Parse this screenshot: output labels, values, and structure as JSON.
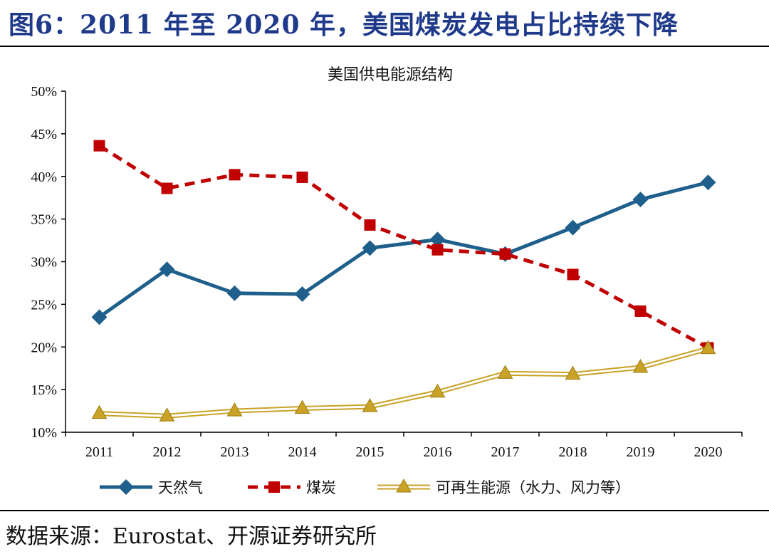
{
  "figure_title": "图6：2011 年至 2020 年，美国煤炭发电占比持续下降",
  "source": "数据来源：Eurostat、开源证券研究所",
  "colors": {
    "gas": "#1f5f8b",
    "coal": "#c00000",
    "renewables": "#c9a227",
    "title": "#1f3a8a"
  },
  "chart_data": {
    "type": "line",
    "title": "美国供电能源结构",
    "xlabel": "",
    "ylabel": "",
    "x": [
      "2011",
      "2012",
      "2013",
      "2014",
      "2015",
      "2016",
      "2017",
      "2018",
      "2019",
      "2020"
    ],
    "ylim": [
      10,
      50
    ],
    "yticks": [
      "10%",
      "15%",
      "20%",
      "25%",
      "30%",
      "35%",
      "40%",
      "45%",
      "50%"
    ],
    "grid": false,
    "legend_position": "bottom",
    "series": [
      {
        "name": "天然气",
        "marker": "diamond",
        "style": "solid",
        "color": "#1f5f8b",
        "values": [
          23.5,
          29.1,
          26.3,
          26.2,
          31.6,
          32.6,
          30.9,
          34.0,
          37.3,
          39.3
        ]
      },
      {
        "name": "煤炭",
        "marker": "square",
        "style": "dashed",
        "color": "#c00000",
        "values": [
          43.6,
          38.6,
          40.2,
          39.9,
          34.3,
          31.4,
          30.9,
          28.5,
          24.2,
          19.9
        ]
      },
      {
        "name": "可再生能源（水力、风力等）",
        "marker": "triangle",
        "style": "double",
        "color": "#c9a227",
        "values": [
          12.2,
          11.9,
          12.5,
          12.8,
          13.0,
          14.7,
          16.9,
          16.8,
          17.6,
          19.8
        ]
      }
    ]
  }
}
